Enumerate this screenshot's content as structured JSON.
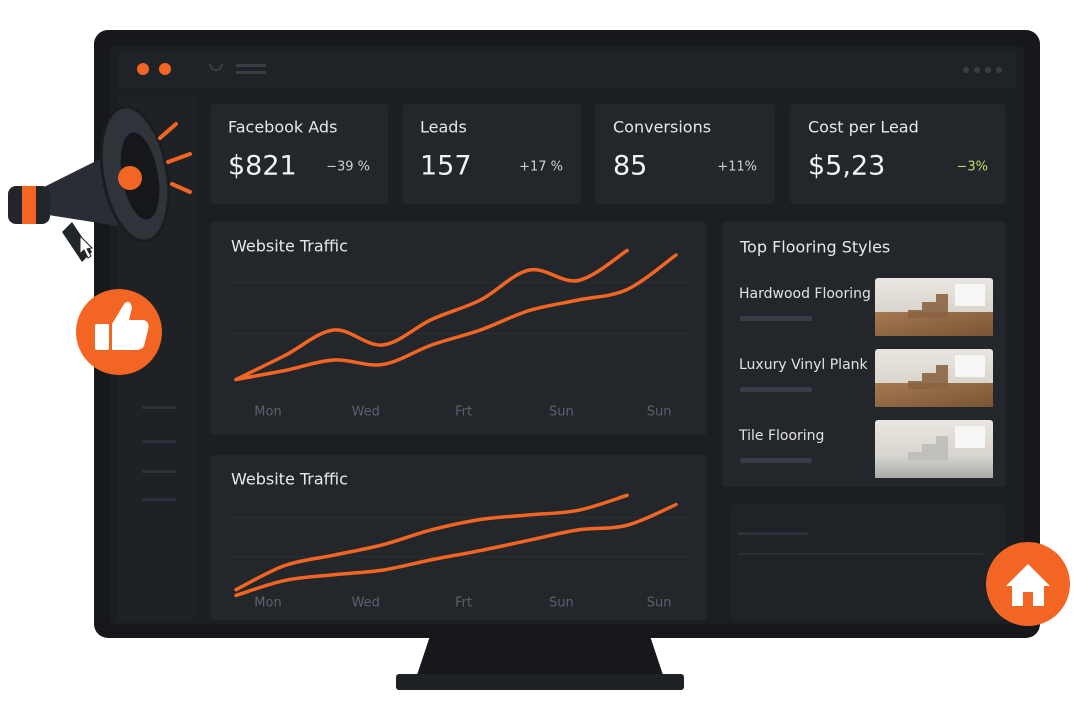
{
  "cards": [
    {
      "title": "Facebook Ads",
      "value": "$821",
      "change": "−39 %"
    },
    {
      "title": "Leads",
      "value": "157",
      "change": "+17 %"
    },
    {
      "title": "Conversions",
      "value": "85",
      "change": "+11%"
    },
    {
      "title": "Cost per Lead",
      "value": "$5,23",
      "change": "−3%"
    }
  ],
  "chart_data": [
    {
      "type": "line",
      "title": "Website Traffic",
      "categories": [
        "Mon",
        null,
        "Wed",
        null,
        "Frt",
        null,
        "Sun",
        null,
        "Sun",
        null
      ],
      "ylim": [
        0,
        100
      ],
      "series": [
        {
          "color": "#f26522",
          "values": [
            7,
            23,
            40,
            30,
            47,
            60,
            80,
            73,
            93,
            null
          ]
        },
        {
          "color": "#f26522",
          "values": [
            7,
            13,
            20,
            17,
            30,
            40,
            53,
            60,
            67,
            90
          ]
        }
      ]
    },
    {
      "type": "line",
      "title": "Website Traffic",
      "categories": [
        "Mon",
        null,
        "Wed",
        null,
        "Frt",
        null,
        "Sun",
        null,
        "Sun",
        null
      ],
      "ylim": [
        0,
        100
      ],
      "series": [
        {
          "color": "#f26522",
          "values": [
            9,
            30,
            39,
            48,
            61,
            70,
            74,
            78,
            91,
            null
          ]
        },
        {
          "color": "#f26522",
          "values": [
            4,
            17,
            22,
            26,
            35,
            43,
            52,
            61,
            65,
            83
          ]
        }
      ]
    }
  ],
  "styles": {
    "title": "Top Flooring Styles",
    "items": [
      "Hardwood Flooring",
      "Luxury Vinyl Plank",
      "Tile Flooring"
    ]
  }
}
